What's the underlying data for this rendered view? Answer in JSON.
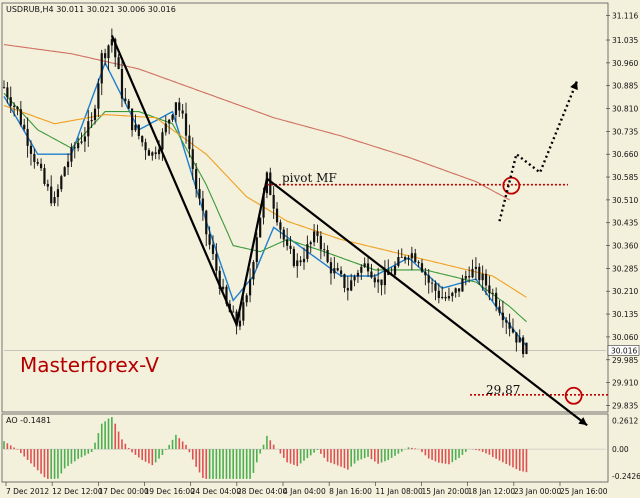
{
  "header": {
    "symbol_line": "USDRUB,H4  30.011 30.021 30.006 30.016",
    "ao_label": "AO -0.1481"
  },
  "brand_text": "Masterforex-V",
  "annotations": {
    "pivot_label": "pivot MF",
    "target_label": "29.87"
  },
  "colors": {
    "background": "#f3f0dc",
    "candle": "#111111",
    "ma_fast": "#1e7fd0",
    "ma_mid": "#3a9a3a",
    "ma_slow": "#f0a020",
    "ma_long": "#d07060",
    "level_line": "#c00000",
    "ao_up": "#4caf50",
    "ao_down": "#e05050",
    "brand": "#b50000"
  },
  "chart_data": {
    "type": "candlestick",
    "symbol": "USDRUB",
    "timeframe": "H4",
    "ohlc_header": {
      "open": 30.011,
      "high": 30.021,
      "low": 30.006,
      "close": 30.016
    },
    "current_price": 30.016,
    "y_ticks": [
      "31.116",
      "31.035",
      "30.960",
      "30.885",
      "30.810",
      "30.735",
      "30.660",
      "30.585",
      "30.510",
      "30.435",
      "30.360",
      "30.285",
      "30.210",
      "30.135",
      "30.060",
      "29.985",
      "29.910",
      "29.835"
    ],
    "ylim": [
      29.82,
      31.15
    ],
    "x_ticks": [
      "7 Dec 2012",
      "12 Dec 12:00",
      "17 Dec 00:00",
      "19 Dec 16:00",
      "24 Dec 04:00",
      "28 Dec 04:00",
      "4 Jan 04:00",
      "8 Jan 16:00",
      "11 Jan 08:00",
      "15 Jan 20:00",
      "18 Jan 12:00",
      "23 Jan 00:00",
      "25 Jan 16:00"
    ],
    "price_path": [
      [
        0,
        30.88
      ],
      [
        4,
        30.8
      ],
      [
        8,
        30.68
      ],
      [
        12,
        30.56
      ],
      [
        15,
        30.5
      ],
      [
        18,
        30.62
      ],
      [
        22,
        30.7
      ],
      [
        26,
        30.76
      ],
      [
        29,
        30.98
      ],
      [
        32,
        31.04
      ],
      [
        35,
        30.86
      ],
      [
        38,
        30.76
      ],
      [
        41,
        30.7
      ],
      [
        44,
        30.66
      ],
      [
        47,
        30.72
      ],
      [
        51,
        30.84
      ],
      [
        54,
        30.74
      ],
      [
        57,
        30.55
      ],
      [
        60,
        30.4
      ],
      [
        63,
        30.28
      ],
      [
        66,
        30.16
      ],
      [
        69,
        30.1
      ],
      [
        72,
        30.18
      ],
      [
        75,
        30.4
      ],
      [
        78,
        30.58
      ],
      [
        81,
        30.46
      ],
      [
        84,
        30.34
      ],
      [
        87,
        30.3
      ],
      [
        90,
        30.35
      ],
      [
        93,
        30.4
      ],
      [
        96,
        30.3
      ],
      [
        99,
        30.26
      ],
      [
        102,
        30.22
      ],
      [
        105,
        30.28
      ],
      [
        108,
        30.3
      ],
      [
        111,
        30.24
      ],
      [
        114,
        30.26
      ],
      [
        117,
        30.3
      ],
      [
        120,
        30.34
      ],
      [
        123,
        30.32
      ],
      [
        126,
        30.24
      ],
      [
        129,
        30.2
      ],
      [
        132,
        30.18
      ],
      [
        135,
        30.22
      ],
      [
        138,
        30.28
      ],
      [
        141,
        30.26
      ],
      [
        144,
        30.22
      ],
      [
        147,
        30.16
      ],
      [
        150,
        30.1
      ],
      [
        153,
        30.04
      ],
      [
        155,
        30.016
      ]
    ],
    "moving_averages": [
      {
        "name": "ma-fast",
        "values": [
          [
            0,
            30.85
          ],
          [
            10,
            30.66
          ],
          [
            20,
            30.66
          ],
          [
            30,
            30.96
          ],
          [
            40,
            30.74
          ],
          [
            50,
            30.8
          ],
          [
            60,
            30.44
          ],
          [
            68,
            30.18
          ],
          [
            74,
            30.26
          ],
          [
            80,
            30.42
          ],
          [
            90,
            30.34
          ],
          [
            100,
            30.26
          ],
          [
            110,
            30.26
          ],
          [
            120,
            30.32
          ],
          [
            130,
            30.22
          ],
          [
            140,
            30.25
          ],
          [
            150,
            30.1
          ],
          [
            155,
            30.03
          ]
        ]
      },
      {
        "name": "ma-mid",
        "values": [
          [
            0,
            30.86
          ],
          [
            10,
            30.74
          ],
          [
            20,
            30.68
          ],
          [
            30,
            30.8
          ],
          [
            40,
            30.8
          ],
          [
            50,
            30.76
          ],
          [
            60,
            30.56
          ],
          [
            68,
            30.36
          ],
          [
            76,
            30.34
          ],
          [
            84,
            30.38
          ],
          [
            95,
            30.34
          ],
          [
            110,
            30.28
          ],
          [
            125,
            30.28
          ],
          [
            140,
            30.24
          ],
          [
            150,
            30.16
          ],
          [
            155,
            30.11
          ]
        ]
      },
      {
        "name": "ma-slow",
        "values": [
          [
            0,
            30.82
          ],
          [
            15,
            30.76
          ],
          [
            30,
            30.79
          ],
          [
            45,
            30.78
          ],
          [
            60,
            30.66
          ],
          [
            72,
            30.52
          ],
          [
            84,
            30.44
          ],
          [
            100,
            30.38
          ],
          [
            115,
            30.34
          ],
          [
            130,
            30.3
          ],
          [
            145,
            30.26
          ],
          [
            155,
            30.19
          ]
        ]
      },
      {
        "name": "ma-long",
        "values": [
          [
            0,
            31.02
          ],
          [
            20,
            30.99
          ],
          [
            40,
            30.94
          ],
          [
            60,
            30.86
          ],
          [
            80,
            30.78
          ],
          [
            100,
            30.72
          ],
          [
            120,
            30.65
          ],
          [
            140,
            30.57
          ],
          [
            150,
            30.51
          ]
        ]
      }
    ],
    "pivot_level": 30.56,
    "target_level": 29.87,
    "trend_lines": [
      {
        "name": "zigzag-down-1",
        "from": [
          32,
          31.05
        ],
        "to": [
          69,
          30.1
        ]
      },
      {
        "name": "zigzag-up",
        "from": [
          69,
          30.1
        ],
        "to": [
          78,
          30.58
        ]
      },
      {
        "name": "channel-down",
        "from": [
          78,
          30.58
        ],
        "to": [
          173,
          29.77
        ]
      }
    ],
    "forecast_path": [
      [
        147,
        30.44
      ],
      [
        152,
        30.66
      ],
      [
        159,
        30.6
      ],
      [
        170,
        30.9
      ]
    ],
    "awesome_oscillator": {
      "label": "AO",
      "last": -0.1481,
      "y_ticks": [
        "0.2612",
        "0.00",
        "-0.2426"
      ],
      "ylim": [
        -0.28,
        0.3
      ]
    }
  }
}
